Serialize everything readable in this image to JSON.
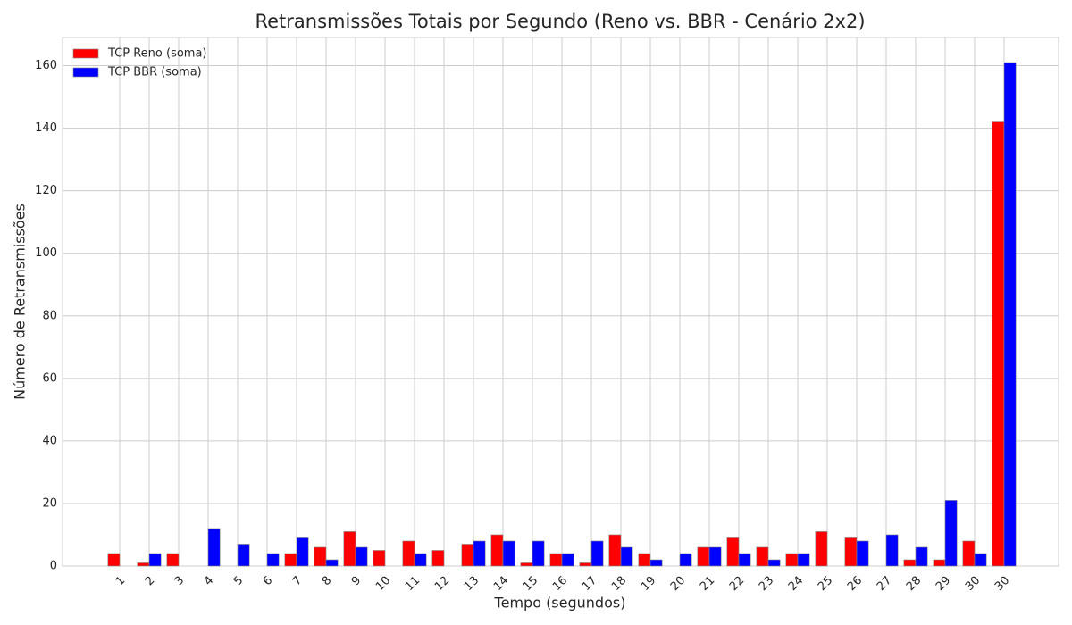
{
  "chart_data": {
    "type": "bar",
    "title": "Retransmissões Totais por Segundo (Reno vs. BBR - Cenário 2x2)",
    "xlabel": "Tempo (segundos)",
    "ylabel": "Número de Retransmissões",
    "categories": [
      "1",
      "2",
      "3",
      "4",
      "5",
      "6",
      "7",
      "8",
      "9",
      "10",
      "11",
      "12",
      "13",
      "14",
      "15",
      "16",
      "17",
      "18",
      "19",
      "20",
      "21",
      "22",
      "23",
      "24",
      "25",
      "26",
      "27",
      "28",
      "29",
      "30",
      "30"
    ],
    "series": [
      {
        "name": "TCP Reno (soma)",
        "color": "#ff0000",
        "values": [
          4,
          1,
          4,
          0,
          0,
          0,
          4,
          6,
          11,
          5,
          8,
          5,
          7,
          10,
          1,
          4,
          1,
          10,
          4,
          0,
          6,
          9,
          6,
          4,
          11,
          9,
          0,
          2,
          2,
          8,
          142
        ]
      },
      {
        "name": "TCP BBR (soma)",
        "color": "#0000ff",
        "values": [
          0,
          4,
          0,
          12,
          7,
          4,
          9,
          2,
          6,
          0,
          4,
          0,
          8,
          8,
          8,
          4,
          8,
          6,
          2,
          4,
          6,
          4,
          2,
          4,
          0,
          8,
          10,
          6,
          21,
          4,
          161
        ]
      }
    ],
    "ylim": [
      0,
      169
    ],
    "yticks": [
      0,
      20,
      40,
      60,
      80,
      100,
      120,
      140,
      160
    ],
    "grid": true,
    "legend": "upper left"
  }
}
